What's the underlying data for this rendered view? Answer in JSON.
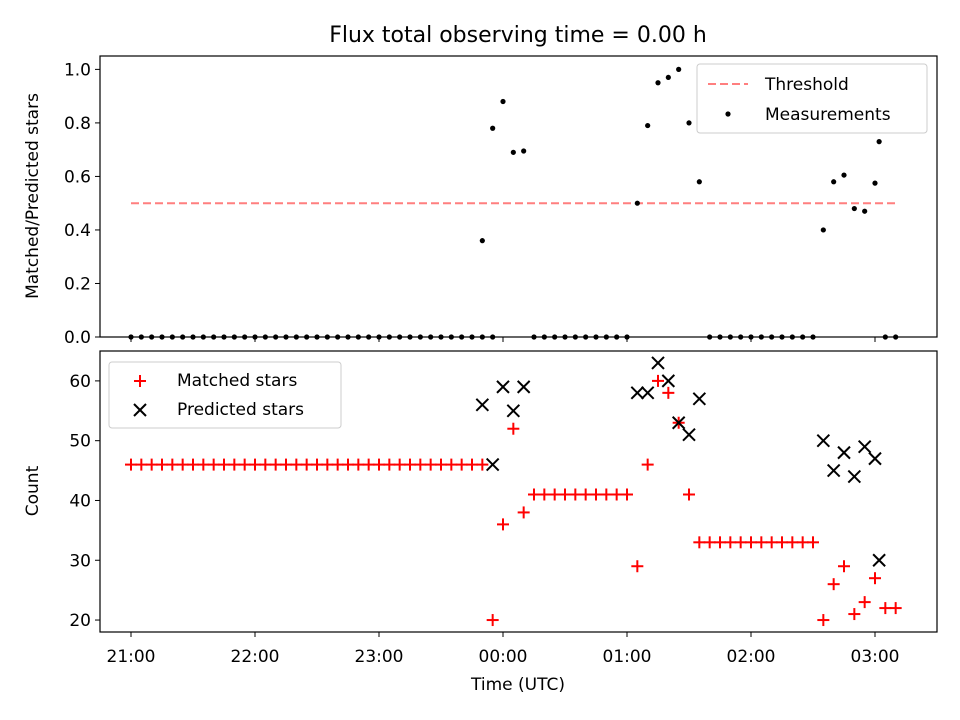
{
  "chart_data": [
    {
      "type": "scatter",
      "title": "Flux total observing time = 0.00 h",
      "xlabel": "",
      "ylabel": "Matched/Predicted stars",
      "xlim": [
        "20:45",
        "03:30"
      ],
      "ylim": [
        0,
        1.05
      ],
      "yticks": [
        0.0,
        0.2,
        0.4,
        0.6,
        0.8,
        1.0
      ],
      "ytick_labels": [
        "0.0",
        "0.2",
        "0.4",
        "0.6",
        "0.8",
        "1.0"
      ],
      "legend_position": "upper right",
      "threshold": {
        "name": "Threshold",
        "value": 0.5,
        "x_start": "21:00",
        "x_end": "03:10",
        "color": "#ff7f7f"
      },
      "series": [
        {
          "name": "Measurements",
          "color": "#000000",
          "x": [
            "21:00",
            "21:05",
            "21:10",
            "21:15",
            "21:20",
            "21:25",
            "21:30",
            "21:35",
            "21:40",
            "21:45",
            "21:50",
            "21:55",
            "22:00",
            "22:05",
            "22:10",
            "22:15",
            "22:20",
            "22:25",
            "22:30",
            "22:35",
            "22:40",
            "22:45",
            "22:50",
            "22:55",
            "23:00",
            "23:05",
            "23:10",
            "23:15",
            "23:20",
            "23:25",
            "23:30",
            "23:35",
            "23:40",
            "23:45",
            "23:50",
            "23:55",
            "00:15",
            "00:20",
            "00:25",
            "00:30",
            "00:35",
            "00:40",
            "00:45",
            "00:50",
            "00:55",
            "01:00",
            "01:40",
            "01:45",
            "01:50",
            "01:55",
            "02:00",
            "02:05",
            "02:10",
            "02:15",
            "02:20",
            "02:25",
            "02:30",
            "03:05",
            "03:10",
            "23:50",
            "23:55",
            "00:00",
            "00:05",
            "00:10",
            "01:05",
            "01:10",
            "01:15",
            "01:20",
            "01:25",
            "01:30",
            "01:35",
            "02:35",
            "02:40",
            "02:45",
            "02:50",
            "02:55",
            "03:00",
            "03:02"
          ],
          "y": [
            0,
            0,
            0,
            0,
            0,
            0,
            0,
            0,
            0,
            0,
            0,
            0,
            0,
            0,
            0,
            0,
            0,
            0,
            0,
            0,
            0,
            0,
            0,
            0,
            0,
            0,
            0,
            0,
            0,
            0,
            0,
            0,
            0,
            0,
            0,
            0,
            0,
            0,
            0,
            0,
            0,
            0,
            0,
            0,
            0,
            0,
            0,
            0,
            0,
            0,
            0,
            0,
            0,
            0,
            0,
            0,
            0,
            0,
            0,
            0.36,
            0.78,
            0.88,
            0.69,
            0.695,
            0.5,
            0.79,
            0.95,
            0.97,
            1.0,
            0.8,
            0.58,
            0.4,
            0.58,
            0.605,
            0.48,
            0.47,
            0.575,
            0.73
          ]
        }
      ]
    },
    {
      "type": "scatter",
      "title": "",
      "xlabel": "Time (UTC)",
      "ylabel": "Count",
      "xlim": [
        "20:45",
        "03:30"
      ],
      "ylim": [
        18,
        65
      ],
      "yticks": [
        20,
        30,
        40,
        50,
        60
      ],
      "ytick_labels": [
        "20",
        "30",
        "40",
        "50",
        "60"
      ],
      "xticks": [
        "21:00",
        "22:00",
        "23:00",
        "00:00",
        "01:00",
        "02:00",
        "03:00"
      ],
      "xtick_labels": [
        "21:00",
        "22:00",
        "23:00",
        "00:00",
        "01:00",
        "02:00",
        "03:00"
      ],
      "legend_position": "upper left",
      "series": [
        {
          "name": "Matched stars",
          "marker": "plus",
          "color": "#ff0000",
          "x": [
            "21:00",
            "21:05",
            "21:10",
            "21:15",
            "21:20",
            "21:25",
            "21:30",
            "21:35",
            "21:40",
            "21:45",
            "21:50",
            "21:55",
            "22:00",
            "22:05",
            "22:10",
            "22:15",
            "22:20",
            "22:25",
            "22:30",
            "22:35",
            "22:40",
            "22:45",
            "22:50",
            "22:55",
            "23:00",
            "23:05",
            "23:10",
            "23:15",
            "23:20",
            "23:25",
            "23:30",
            "23:35",
            "23:40",
            "23:45",
            "23:50",
            "23:55",
            "00:00",
            "00:05",
            "00:10",
            "00:15",
            "00:20",
            "00:25",
            "00:30",
            "00:35",
            "00:40",
            "00:45",
            "00:50",
            "00:55",
            "01:00",
            "01:05",
            "01:10",
            "01:15",
            "01:20",
            "01:25",
            "01:30",
            "01:35",
            "01:40",
            "01:45",
            "01:50",
            "01:55",
            "02:00",
            "02:05",
            "02:10",
            "02:15",
            "02:20",
            "02:25",
            "02:30",
            "02:35",
            "02:40",
            "02:45",
            "02:50",
            "02:55",
            "03:00",
            "03:05",
            "03:10"
          ],
          "y": [
            46,
            46,
            46,
            46,
            46,
            46,
            46,
            46,
            46,
            46,
            46,
            46,
            46,
            46,
            46,
            46,
            46,
            46,
            46,
            46,
            46,
            46,
            46,
            46,
            46,
            46,
            46,
            46,
            46,
            46,
            46,
            46,
            46,
            46,
            46,
            20,
            36,
            52,
            38,
            41,
            41,
            41,
            41,
            41,
            41,
            41,
            41,
            41,
            41,
            29,
            46,
            60,
            58,
            53,
            41,
            33,
            33,
            33,
            33,
            33,
            33,
            33,
            33,
            33,
            33,
            33,
            33,
            20,
            26,
            29,
            21,
            23,
            27,
            22,
            22
          ]
        },
        {
          "name": "Predicted stars",
          "marker": "x",
          "color": "#000000",
          "x": [
            "23:50",
            "23:55",
            "00:00",
            "00:05",
            "00:10",
            "01:05",
            "01:10",
            "01:15",
            "01:20",
            "01:25",
            "01:30",
            "01:35",
            "02:35",
            "02:40",
            "02:45",
            "02:50",
            "02:55",
            "03:00",
            "03:02"
          ],
          "y": [
            56,
            46,
            59,
            55,
            59,
            58,
            58,
            63,
            60,
            53,
            51,
            57,
            50,
            45,
            48,
            44,
            49,
            47,
            30
          ]
        }
      ]
    }
  ]
}
